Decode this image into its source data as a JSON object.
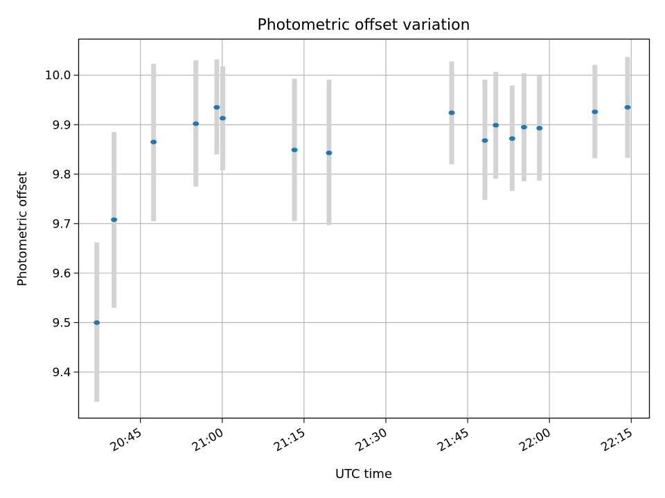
{
  "chart_data": {
    "type": "scatter",
    "title": "Photometric offset variation",
    "xlabel": "UTC time",
    "ylabel": "Photometric offset",
    "x_axis": "time",
    "x_ticks": [
      "20:45",
      "21:00",
      "21:15",
      "21:30",
      "21:45",
      "22:00",
      "22:15"
    ],
    "xlim": [
      "20:33:40",
      "22:18:20"
    ],
    "y_ticks": [
      9.4,
      9.5,
      9.6,
      9.7,
      9.8,
      9.9,
      10.0
    ],
    "y_tick_labels": [
      "9.4",
      "9.5",
      "9.6",
      "9.7",
      "9.8",
      "9.9",
      "10.0"
    ],
    "ylim": [
      9.307,
      10.073
    ],
    "grid": true,
    "marker_color": "#1f77b4",
    "errorbar_color": "#d3d3d3",
    "points": [
      {
        "t": "20:37:00",
        "y": 9.5,
        "lo": 9.34,
        "hi": 9.662
      },
      {
        "t": "20:40:10",
        "y": 9.708,
        "lo": 9.53,
        "hi": 9.885
      },
      {
        "t": "20:47:25",
        "y": 9.865,
        "lo": 9.705,
        "hi": 10.023
      },
      {
        "t": "20:55:10",
        "y": 9.902,
        "lo": 9.775,
        "hi": 10.03
      },
      {
        "t": "20:59:00",
        "y": 9.935,
        "lo": 9.84,
        "hi": 10.032
      },
      {
        "t": "21:00:05",
        "y": 9.913,
        "lo": 9.808,
        "hi": 10.018
      },
      {
        "t": "21:13:15",
        "y": 9.849,
        "lo": 9.705,
        "hi": 9.993
      },
      {
        "t": "21:19:35",
        "y": 9.843,
        "lo": 9.697,
        "hi": 9.991
      },
      {
        "t": "21:42:05",
        "y": 9.924,
        "lo": 9.82,
        "hi": 10.028
      },
      {
        "t": "21:48:10",
        "y": 9.868,
        "lo": 9.748,
        "hi": 9.991
      },
      {
        "t": "21:50:10",
        "y": 9.899,
        "lo": 9.791,
        "hi": 10.007
      },
      {
        "t": "21:53:10",
        "y": 9.872,
        "lo": 9.766,
        "hi": 9.979
      },
      {
        "t": "21:55:20",
        "y": 9.895,
        "lo": 9.786,
        "hi": 10.004
      },
      {
        "t": "21:58:10",
        "y": 9.893,
        "lo": 9.787,
        "hi": 9.999
      },
      {
        "t": "22:08:20",
        "y": 9.926,
        "lo": 9.832,
        "hi": 10.021
      },
      {
        "t": "22:14:20",
        "y": 9.935,
        "lo": 9.833,
        "hi": 10.037
      }
    ]
  }
}
